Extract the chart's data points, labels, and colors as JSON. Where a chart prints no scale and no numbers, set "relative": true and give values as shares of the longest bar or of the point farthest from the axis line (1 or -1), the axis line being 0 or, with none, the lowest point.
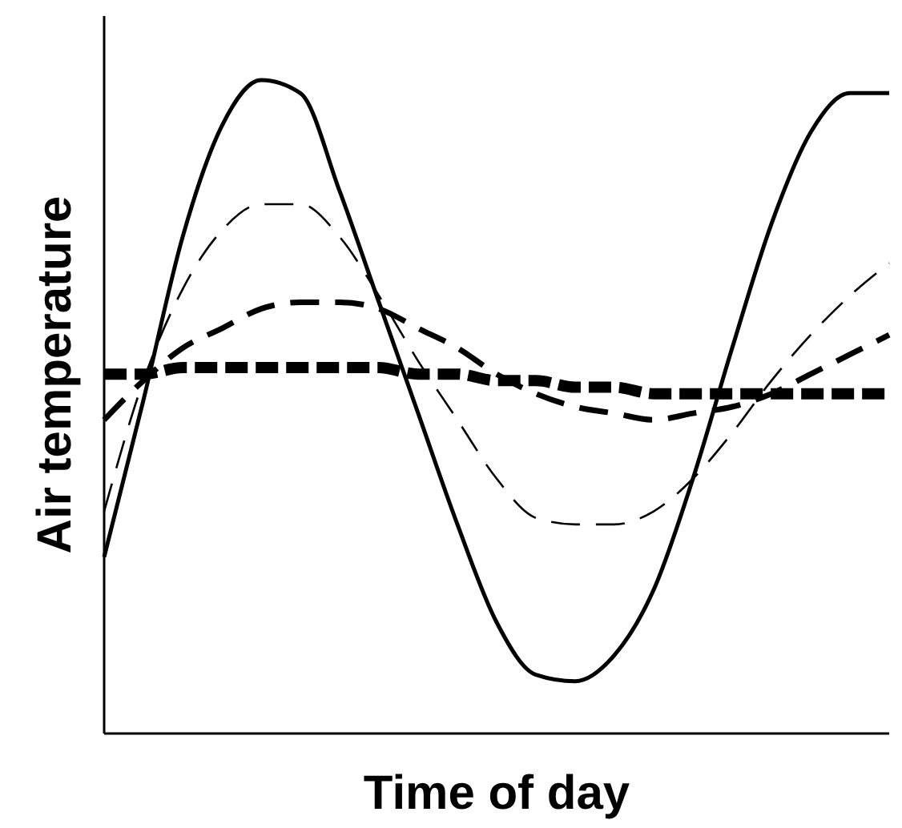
{
  "chart_data": {
    "type": "line",
    "xlabel": "Time of day",
    "ylabel": "Air temperature",
    "relative": true,
    "tick_labels": false,
    "categories": [
      null,
      null,
      null,
      null,
      null,
      null,
      null,
      null,
      null,
      null,
      null,
      null,
      null,
      null,
      null,
      null,
      null,
      null,
      null,
      null,
      null
    ],
    "series": [
      {
        "color": "#000000",
        "line_style": "solid",
        "values": [
          0.27,
          0.51,
          0.76,
          0.93,
          1,
          0.98,
          0.83,
          0.66,
          0.49,
          0.32,
          0.17,
          0.09,
          0.08,
          0.12,
          0.22,
          0.39,
          0.59,
          0.78,
          0.92,
          0.98,
          0.98
        ]
      },
      {
        "color": "#000000",
        "line_style": "dashed",
        "values": [
          0.34,
          0.54,
          0.68,
          0.77,
          0.81,
          0.81,
          0.76,
          0.67,
          0.57,
          0.48,
          0.39,
          0.33,
          0.32,
          0.32,
          0.34,
          0.39,
          0.46,
          0.54,
          0.61,
          0.67,
          0.72
        ]
      },
      {
        "color": "#000000",
        "line_style": "dashed",
        "values": [
          0.48,
          0.54,
          0.59,
          0.62,
          0.65,
          0.66,
          0.66,
          0.65,
          0.62,
          0.59,
          0.55,
          0.52,
          0.5,
          0.49,
          0.48,
          0.49,
          0.5,
          0.52,
          0.55,
          0.58,
          0.61
        ]
      },
      {
        "color": "#000000",
        "line_style": "dashed",
        "values": [
          0.55,
          0.55,
          0.56,
          0.56,
          0.56,
          0.56,
          0.56,
          0.56,
          0.55,
          0.55,
          0.54,
          0.54,
          0.53,
          0.53,
          0.52,
          0.52,
          0.52,
          0.52,
          0.52,
          0.52,
          0.52
        ]
      }
    ]
  }
}
